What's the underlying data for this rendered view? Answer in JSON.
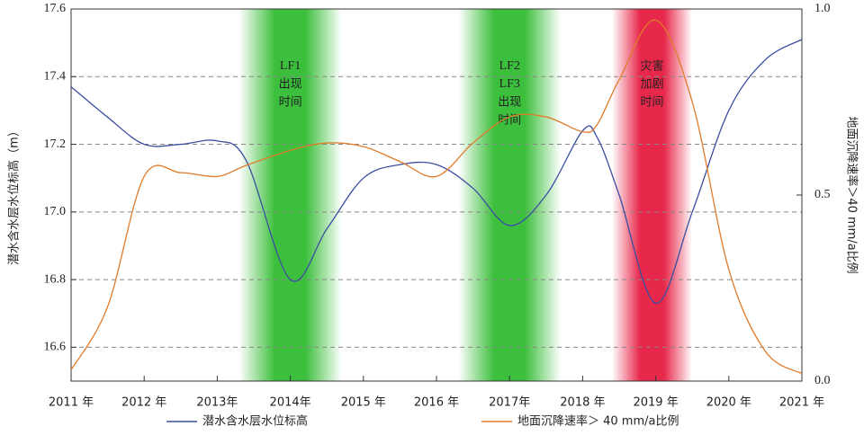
{
  "chart_data": {
    "type": "line",
    "y_label": "潜水含水层水位标高（m）",
    "y2_label": "地面沉降速率＞40 mm/a比例",
    "x": [
      2011,
      2011.5,
      2012,
      2012.5,
      2013,
      2013.4,
      2014,
      2014.5,
      2015,
      2015.5,
      2016,
      2016.5,
      2017,
      2017.5,
      2018,
      2018.2,
      2018.5,
      2019,
      2019.5,
      2020,
      2020.5,
      2021
    ],
    "series": [
      {
        "name": "潜水含水层水位标高",
        "color": "#3b4ea0",
        "values": [
          17.37,
          17.28,
          17.2,
          17.2,
          17.21,
          17.15,
          16.8,
          16.95,
          17.1,
          17.14,
          17.14,
          17.07,
          16.96,
          17.05,
          17.24,
          17.22,
          17.05,
          16.73,
          17.0,
          17.3,
          17.45,
          17.51
        ]
      },
      {
        "name": "地面沉降速率＞ 40 mm/a比例",
        "color": "#e07b2a",
        "axis": "y2",
        "values": [
          0.03,
          0.2,
          0.55,
          0.56,
          0.55,
          0.58,
          0.62,
          0.64,
          0.63,
          0.59,
          0.55,
          0.64,
          0.71,
          0.71,
          0.67,
          0.69,
          0.81,
          0.97,
          0.75,
          0.3,
          0.08,
          0.02
        ]
      }
    ],
    "xlim": [
      2011,
      2021
    ],
    "xticks": [
      {
        "value": 2011,
        "label": "2011 年"
      },
      {
        "value": 2012,
        "label": "2012 年"
      },
      {
        "value": 2013,
        "label": "2013年"
      },
      {
        "value": 2014,
        "label": "2014年"
      },
      {
        "value": 2015,
        "label": "2015 年"
      },
      {
        "value": 2016,
        "label": "2016 年"
      },
      {
        "value": 2017,
        "label": "2017年"
      },
      {
        "value": 2018,
        "label": "2018 年"
      },
      {
        "value": 2019,
        "label": "2019 年"
      },
      {
        "value": 2020,
        "label": "2020 年"
      },
      {
        "value": 2021,
        "label": "2021 年"
      }
    ],
    "ylim": [
      16.5,
      17.6
    ],
    "yticks": [
      16.6,
      16.8,
      {
        "value": 17,
        "label": "17.0"
      },
      17.2,
      17.4,
      17.6
    ],
    "y2lim": [
      0,
      1
    ],
    "y2ticks": [
      {
        "value": 0,
        "label": "0.0"
      },
      0.5,
      {
        "value": 1,
        "label": "1.0"
      }
    ],
    "grid": true,
    "bands": [
      {
        "from": 2013.3,
        "to": 2014.7,
        "color": "#3cbf3c",
        "lines": [
          "LF1",
          "出现",
          "时间"
        ]
      },
      {
        "from": 2016.3,
        "to": 2017.7,
        "color": "#3cbf3c",
        "lines": [
          "LF2",
          "LF3",
          "出现",
          "时间"
        ]
      },
      {
        "from": 2018.4,
        "to": 2019.5,
        "color": "#e8284a",
        "lines": [
          "灾害",
          "加剧",
          "时间"
        ]
      }
    ]
  }
}
